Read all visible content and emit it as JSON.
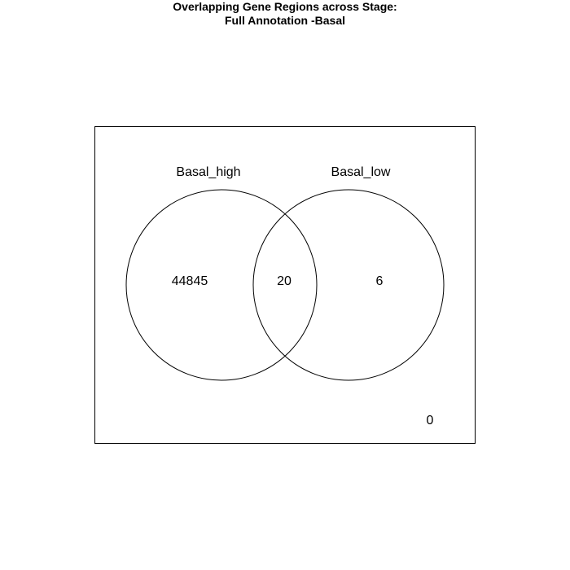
{
  "title": {
    "line1": "Overlapping Gene Regions across Stage:",
    "line2": "Full Annotation -Basal"
  },
  "sets": [
    {
      "name": "Basal_high"
    },
    {
      "name": "Basal_low"
    }
  ],
  "regions": {
    "only_basal_high": "44845",
    "both": "20",
    "only_basal_low": "6",
    "neither": "0"
  },
  "colors": {
    "background": "#ffffff",
    "stroke": "#000000"
  }
}
